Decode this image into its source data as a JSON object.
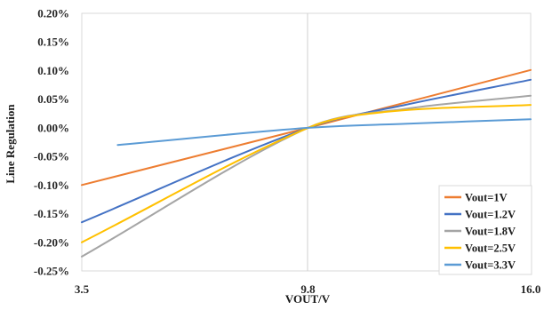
{
  "chart_data": {
    "type": "line",
    "title": "",
    "xlabel": "VOUT/V",
    "ylabel": "Line Regulation",
    "x_ticks": [
      "3.5",
      "9.8",
      "16.0"
    ],
    "y_ticks": [
      "0.20%",
      "0.15%",
      "0.10%",
      "0.05%",
      "0.00%",
      "-0.05%",
      "-0.10%",
      "-0.15%",
      "-0.20%",
      "-0.25%"
    ],
    "xlim": [
      3.5,
      16.0
    ],
    "ylim": [
      -0.25,
      0.2
    ],
    "y_unit": "%",
    "grid": "vertical-only",
    "legend_position": "bottom-right",
    "series": [
      {
        "name": "Vout=1V",
        "color": "#ED7D31",
        "x": [
          3.5,
          9.8,
          16.0
        ],
        "y": [
          -0.1,
          0.0,
          0.101
        ]
      },
      {
        "name": "Vout=1.2V",
        "color": "#4472C4",
        "x": [
          3.5,
          9.8,
          12.5,
          16.0
        ],
        "y": [
          -0.165,
          0.0,
          0.04,
          0.084
        ]
      },
      {
        "name": "Vout=1.8V",
        "color": "#A5A5A5",
        "x": [
          3.5,
          9.8,
          12.5,
          16.0
        ],
        "y": [
          -0.225,
          0.0,
          0.033,
          0.056
        ]
      },
      {
        "name": "Vout=2.5V",
        "color": "#FFC000",
        "x": [
          3.5,
          9.8,
          12.0,
          16.0
        ],
        "y": [
          -0.2,
          0.0,
          0.028,
          0.04
        ]
      },
      {
        "name": "Vout=3.3V",
        "color": "#5B9BD5",
        "x": [
          4.5,
          9.8,
          12.5,
          16.0
        ],
        "y": [
          -0.03,
          0.0,
          0.007,
          0.015
        ]
      }
    ]
  }
}
